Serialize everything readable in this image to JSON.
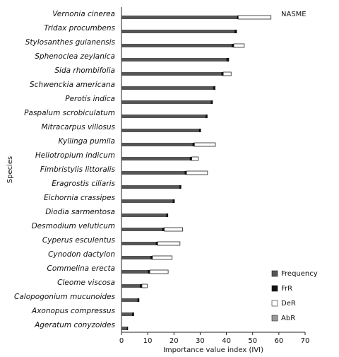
{
  "chart_data": {
    "type": "stacked-barh",
    "annotation": "NASME",
    "x_label": "Importance value index (IVI)",
    "y_label": "Species",
    "categories": [
      "Vernonia cinerea",
      "Tridax procumbens",
      "Stylosanthes guianensis",
      "Sphenoclea zeylanica",
      "Sida rhombifolia",
      "Schwenckia americana",
      "Perotis indica",
      "Paspalum scrobiculatum",
      "Mitracarpus villosus",
      "Kyllinga pumila",
      "Heliotropium indicum",
      "Fimbristylis littoralis",
      "Eragrostis ciliaris",
      "Eichornia crassipes",
      "Diodia sarmentosa",
      "Desmodium veluticum",
      "Cyperus esculentus",
      "Cynodon dactylon",
      "Commelina erecta",
      "Cleome viscosa",
      "Calopogonium mucunoides",
      "Axonopus compressus",
      "Ageratum conyzoides"
    ],
    "series": [
      {
        "name": "Frequency",
        "color": "#555555",
        "values": [
          44,
          43,
          42,
          40,
          38,
          35,
          34,
          32,
          29.5,
          27,
          26,
          24,
          22,
          19.5,
          17,
          15.5,
          13,
          11,
          10,
          7,
          6,
          4,
          2
        ]
      },
      {
        "name": "FrR",
        "color": "#111111",
        "values": [
          0.5,
          1,
          0.8,
          1,
          0.8,
          0.8,
          0.8,
          0.8,
          0.8,
          0.8,
          0.8,
          0.8,
          0.8,
          0.8,
          0.8,
          0.8,
          0.8,
          0.8,
          0.8,
          0.8,
          0.8,
          0.8,
          0.5
        ]
      },
      {
        "name": "DeR",
        "color": "#ffffff",
        "values": [
          12.5,
          0,
          4,
          0,
          3,
          0,
          0,
          0,
          0,
          8,
          2.5,
          8,
          0,
          0,
          0,
          7,
          8.5,
          7.5,
          7,
          2,
          0,
          0,
          0
        ]
      },
      {
        "name": "AbR",
        "color": "#999999",
        "values": [
          0,
          0,
          0,
          0,
          0,
          0,
          0,
          0,
          0,
          0,
          0,
          0,
          0,
          0,
          0,
          0,
          0,
          0,
          0,
          0,
          0,
          0,
          0
        ]
      }
    ],
    "xlim": [
      0,
      70
    ],
    "xticks": [
      0,
      10,
      20,
      30,
      40,
      50,
      60,
      70
    ]
  }
}
